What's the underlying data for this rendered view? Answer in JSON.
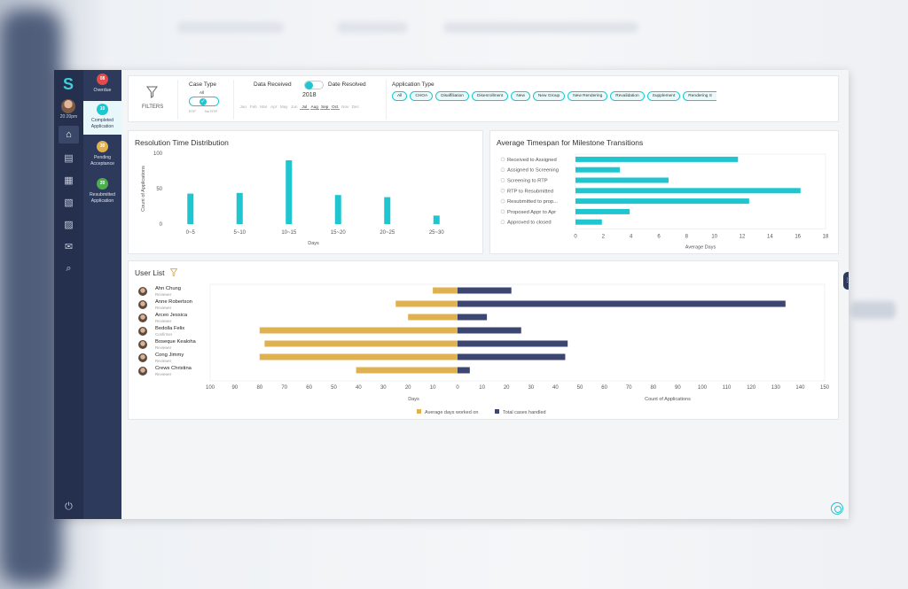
{
  "colors": {
    "teal": "#1fc6d0",
    "gold": "#e0b151",
    "navy": "#3c4670",
    "sidebar": "#25304f"
  },
  "rail": {
    "time": "20:20pm",
    "icons": [
      "home-icon",
      "clipboard-icon",
      "buildings-icon",
      "document-icon",
      "report-icon",
      "mail-icon",
      "search-doc-icon",
      "power-icon"
    ]
  },
  "statuses": [
    {
      "count": "08",
      "label": "Overdue",
      "color": "#e04b4b"
    },
    {
      "count": "10",
      "label": "Completed Application",
      "color": "#1fc6d0"
    },
    {
      "count": "30",
      "label": "Pending Acceptance",
      "color": "#e0b151"
    },
    {
      "count": "20",
      "label": "Resubmitted Application",
      "color": "#4cae4c"
    }
  ],
  "filters": {
    "label": "FILTERS",
    "case_type": {
      "title": "Case Type",
      "all": "All",
      "left": "RTP",
      "right": "No RTP"
    },
    "date": {
      "received": "Data Received",
      "resolved": "Date Resolved",
      "year": "2018",
      "months": [
        "Jan",
        "Feb",
        "Mar",
        "Apr",
        "May",
        "Jun",
        "Jul",
        "Aug",
        "Sep",
        "Oct",
        "Nov",
        "Dec"
      ],
      "active_months": [
        "Jul",
        "Aug",
        "Sep",
        "Oct"
      ]
    },
    "app_type": {
      "title": "Application Type",
      "chips": [
        "All",
        "CHOA",
        "Disaffiliation",
        "Disenrollment",
        "New",
        "New Group",
        "New Rendering",
        "Revalidation",
        "Supplement",
        "Rendering S"
      ]
    }
  },
  "resolution": {
    "title": "Resolution Time Distribution",
    "chart_data": {
      "type": "bar",
      "categories": [
        "0~5",
        "5~10",
        "10~15",
        "15~20",
        "20~25",
        "25~30"
      ],
      "values": [
        43,
        44,
        90,
        41,
        38,
        12
      ],
      "xlabel": "Days",
      "ylabel": "Count of Applications",
      "ylim": [
        0,
        100
      ],
      "yticks": [
        0,
        50,
        100
      ]
    }
  },
  "milestones": {
    "title": "Average Timespan for Milestone Transitions",
    "chart_data": {
      "type": "bar",
      "orientation": "horizontal",
      "categories": [
        "Received to Assigned",
        "Assigned to Screening",
        "Screening to RTP",
        "RTP to Resubmitted",
        "Resubmitted to prop...",
        "Proposed Appr to Apr",
        "Approved to closed"
      ],
      "values": [
        11.7,
        3.2,
        6.7,
        16.2,
        12.5,
        3.9,
        1.9
      ],
      "xlabel": "Average Days",
      "xlim": [
        0,
        18
      ],
      "xticks": [
        0,
        2,
        4,
        6,
        8,
        10,
        12,
        14,
        16,
        18
      ]
    }
  },
  "user_list": {
    "title": "User List",
    "users": [
      {
        "name": "Ahn Chung",
        "role": "Reviewer"
      },
      {
        "name": "Anne Robertson",
        "role": "Reviewer"
      },
      {
        "name": "Arceo Jessica",
        "role": "Reviewer"
      },
      {
        "name": "Bedolla Felix",
        "role": "Confirmer"
      },
      {
        "name": "Boseque Kealoha",
        "role": "Reviewer"
      },
      {
        "name": "Cong Jimmy",
        "role": "Reviewer"
      },
      {
        "name": "Crews Christina",
        "role": "Reviewer"
      }
    ],
    "chart_data": {
      "type": "bar",
      "orientation": "diverging-horizontal",
      "series": [
        {
          "name": "Average days worked on",
          "values": [
            10,
            25,
            20,
            80,
            78,
            80,
            41
          ]
        },
        {
          "name": "Total cases handled",
          "values": [
            22,
            134,
            12,
            26,
            45,
            44,
            5
          ]
        }
      ],
      "left_xlabel": "Days",
      "right_xlabel": "Count of Applications",
      "left_ticks": [
        100,
        90,
        80,
        70,
        60,
        50,
        40,
        30,
        20,
        10,
        0
      ],
      "right_ticks": [
        10,
        20,
        30,
        40,
        50,
        60,
        70,
        80,
        90,
        100,
        110,
        120,
        130,
        140,
        150
      ]
    }
  }
}
